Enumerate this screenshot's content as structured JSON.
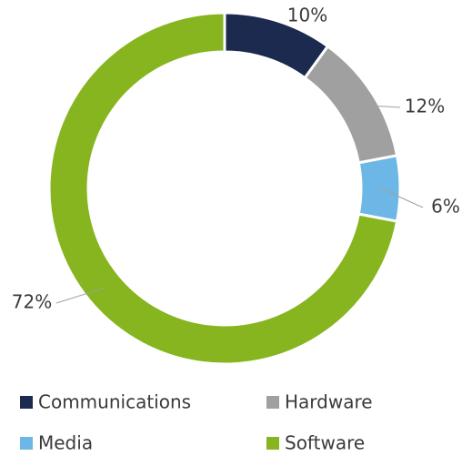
{
  "chart_data": {
    "type": "donut",
    "categories": [
      "Communications",
      "Hardware",
      "Media",
      "Software"
    ],
    "values": [
      10,
      12,
      6,
      72
    ],
    "value_labels": [
      "10%",
      "12%",
      "6%",
      "72%"
    ],
    "colors": [
      "#1b2a4e",
      "#a0a0a0",
      "#6cb7e6",
      "#86b51f"
    ],
    "legend": "bottom"
  }
}
